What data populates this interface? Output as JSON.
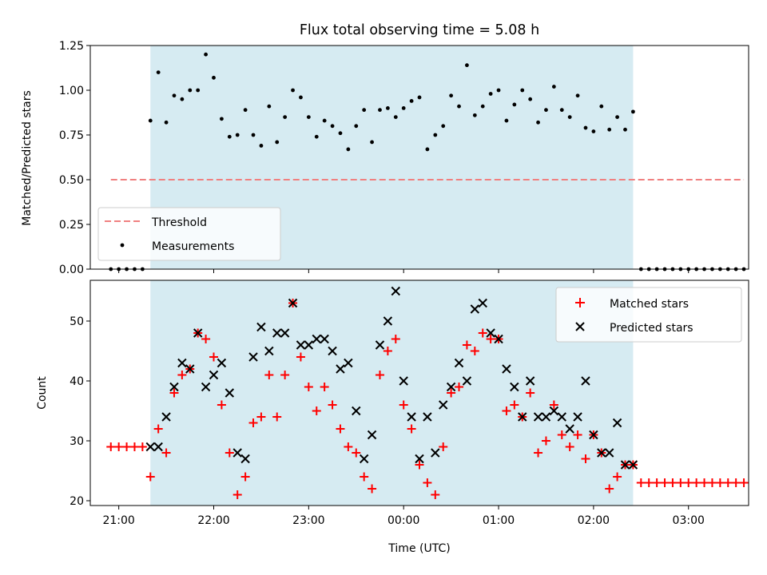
{
  "chart_data": [
    {
      "type": "scatter",
      "title": "Flux total observing time = 5.08 h",
      "xlabel": "",
      "ylabel": "Matched/Predicted stars",
      "ylim": [
        0,
        1.25
      ],
      "yticks": [
        "0.00",
        "0.25",
        "0.50",
        "0.75",
        "1.00",
        "1.25"
      ],
      "shaded_region": [
        "21:20",
        "02:25"
      ],
      "threshold": {
        "name": "Threshold",
        "value": 0.5,
        "x_range": [
          "20:55",
          "03:35"
        ],
        "color": "#f08080"
      },
      "legend": {
        "position": "lower-left",
        "entries": [
          "Threshold",
          "Measurements"
        ]
      },
      "series": [
        {
          "name": "Measurements",
          "color": "#000000",
          "x": [
            "20:55",
            "21:00",
            "21:05",
            "21:10",
            "21:15",
            "21:20",
            "21:25",
            "21:30",
            "21:35",
            "21:40",
            "21:45",
            "21:50",
            "21:55",
            "22:00",
            "22:05",
            "22:10",
            "22:15",
            "22:20",
            "22:25",
            "22:30",
            "22:35",
            "22:40",
            "22:45",
            "22:50",
            "22:55",
            "23:00",
            "23:05",
            "23:10",
            "23:15",
            "23:20",
            "23:25",
            "23:30",
            "23:35",
            "23:40",
            "23:45",
            "23:50",
            "23:55",
            "00:00",
            "00:05",
            "00:10",
            "00:15",
            "00:20",
            "00:25",
            "00:30",
            "00:35",
            "00:40",
            "00:45",
            "00:50",
            "00:55",
            "01:00",
            "01:05",
            "01:10",
            "01:15",
            "01:20",
            "01:25",
            "01:30",
            "01:35",
            "01:40",
            "01:45",
            "01:50",
            "01:55",
            "02:00",
            "02:05",
            "02:10",
            "02:15",
            "02:20",
            "02:25",
            "02:30",
            "02:35",
            "02:40",
            "02:45",
            "02:50",
            "02:55",
            "03:00",
            "03:05",
            "03:10",
            "03:15",
            "03:20",
            "03:25",
            "03:30",
            "03:35"
          ],
          "y": [
            0,
            0,
            0,
            0,
            0,
            0.83,
            1.1,
            0.82,
            0.97,
            0.95,
            1.0,
            1.0,
            1.2,
            1.07,
            0.84,
            0.74,
            0.75,
            0.89,
            0.75,
            0.69,
            0.91,
            0.71,
            0.85,
            1.0,
            0.96,
            0.85,
            0.74,
            0.83,
            0.8,
            0.76,
            0.67,
            0.8,
            0.89,
            0.71,
            0.89,
            0.9,
            0.85,
            0.9,
            0.94,
            0.96,
            0.67,
            0.75,
            0.8,
            0.97,
            0.91,
            1.14,
            0.86,
            0.91,
            0.98,
            1.0,
            0.83,
            0.92,
            1.0,
            0.95,
            0.82,
            0.89,
            1.02,
            0.89,
            0.85,
            0.97,
            0.79,
            0.77,
            0.91,
            0.78,
            0.85,
            0.78,
            0.88,
            0,
            0,
            0,
            0,
            0,
            0,
            0,
            0,
            0,
            0,
            0,
            0,
            0,
            0
          ]
        }
      ]
    },
    {
      "type": "scatter",
      "title": "",
      "xlabel": "Time (UTC)",
      "ylabel": "Count",
      "ylim": [
        19.2,
        56.8
      ],
      "yticks": [
        "20",
        "30",
        "40",
        "50"
      ],
      "xticks": [
        "21:00",
        "22:00",
        "23:00",
        "00:00",
        "01:00",
        "02:00",
        "03:00"
      ],
      "shaded_region": [
        "21:20",
        "02:25"
      ],
      "legend": {
        "position": "top-right",
        "entries": [
          "Matched stars",
          "Predicted stars"
        ]
      },
      "series": [
        {
          "name": "Matched stars",
          "marker": "+",
          "color": "#ff0000",
          "x": [
            "20:55",
            "21:00",
            "21:05",
            "21:10",
            "21:15",
            "21:20",
            "21:25",
            "21:30",
            "21:35",
            "21:40",
            "21:45",
            "21:50",
            "21:55",
            "22:00",
            "22:05",
            "22:10",
            "22:15",
            "22:20",
            "22:25",
            "22:30",
            "22:35",
            "22:40",
            "22:45",
            "22:50",
            "22:55",
            "23:00",
            "23:05",
            "23:10",
            "23:15",
            "23:20",
            "23:25",
            "23:30",
            "23:35",
            "23:40",
            "23:45",
            "23:50",
            "23:55",
            "00:00",
            "00:05",
            "00:10",
            "00:15",
            "00:20",
            "00:25",
            "00:30",
            "00:35",
            "00:40",
            "00:45",
            "00:50",
            "00:55",
            "01:00",
            "01:05",
            "01:10",
            "01:15",
            "01:20",
            "01:25",
            "01:30",
            "01:35",
            "01:40",
            "01:45",
            "01:50",
            "01:55",
            "02:00",
            "02:05",
            "02:10",
            "02:15",
            "02:20",
            "02:25",
            "02:30",
            "02:35",
            "02:40",
            "02:45",
            "02:50",
            "02:55",
            "03:00",
            "03:05",
            "03:10",
            "03:15",
            "03:20",
            "03:25",
            "03:30",
            "03:35"
          ],
          "y": [
            29,
            29,
            29,
            29,
            29,
            24,
            32,
            28,
            38,
            41,
            42,
            48,
            47,
            44,
            36,
            28,
            21,
            24,
            33,
            34,
            41,
            34,
            41,
            53,
            44,
            39,
            35,
            39,
            36,
            32,
            29,
            28,
            24,
            22,
            41,
            45,
            47,
            36,
            32,
            26,
            23,
            21,
            29,
            38,
            39,
            46,
            45,
            48,
            47,
            47,
            35,
            36,
            34,
            38,
            28,
            30,
            36,
            31,
            29,
            31,
            27,
            31,
            28,
            22,
            24,
            26,
            26,
            23,
            23,
            23,
            23,
            23,
            23,
            23,
            23,
            23,
            23,
            23,
            23,
            23,
            23
          ]
        },
        {
          "name": "Predicted stars",
          "marker": "x",
          "color": "#000000",
          "x": [
            "21:20",
            "21:25",
            "21:30",
            "21:35",
            "21:40",
            "21:45",
            "21:50",
            "21:55",
            "22:00",
            "22:05",
            "22:10",
            "22:15",
            "22:20",
            "22:25",
            "22:30",
            "22:35",
            "22:40",
            "22:45",
            "22:50",
            "22:55",
            "23:00",
            "23:05",
            "23:10",
            "23:15",
            "23:20",
            "23:25",
            "23:30",
            "23:35",
            "23:40",
            "23:45",
            "23:50",
            "23:55",
            "00:00",
            "00:05",
            "00:10",
            "00:15",
            "00:20",
            "00:25",
            "00:30",
            "00:35",
            "00:40",
            "00:45",
            "00:50",
            "00:55",
            "01:00",
            "01:05",
            "01:10",
            "01:15",
            "01:20",
            "01:25",
            "01:30",
            "01:35",
            "01:40",
            "01:45",
            "01:50",
            "01:55",
            "02:00",
            "02:05",
            "02:10",
            "02:15",
            "02:20",
            "02:25"
          ],
          "y": [
            29,
            29,
            34,
            39,
            43,
            42,
            48,
            39,
            41,
            43,
            38,
            28,
            27,
            44,
            49,
            45,
            48,
            48,
            53,
            46,
            46,
            47,
            47,
            45,
            42,
            43,
            35,
            27,
            31,
            46,
            50,
            55,
            40,
            34,
            27,
            34,
            28,
            36,
            39,
            43,
            40,
            52,
            53,
            48,
            47,
            42,
            39,
            34,
            40,
            34,
            34,
            35,
            34,
            32,
            34,
            40,
            31,
            28,
            28,
            33,
            26,
            26
          ]
        }
      ]
    }
  ]
}
